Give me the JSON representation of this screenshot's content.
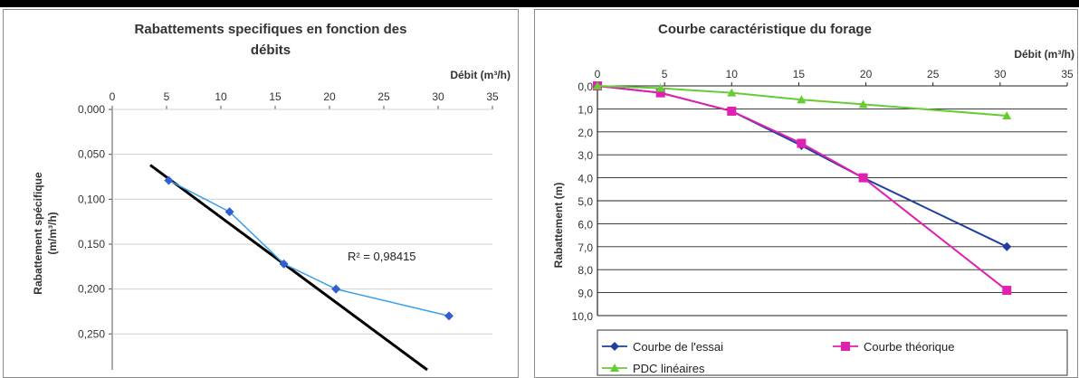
{
  "charts": [
    {
      "title_line1": "Rabattements specifiques en fonction des",
      "title_line2": "débits",
      "x_label": "Débit (m³/h)",
      "y_label_line1": "Rabattement spécifique",
      "y_label_line2": "(m/m³/h)",
      "annotation": "R² = 0,98415"
    },
    {
      "title": "Courbe caractéristique du forage",
      "x_label": "Débit (m³/h)",
      "y_label": "Rabattement (m)"
    }
  ],
  "chart_data": [
    {
      "type": "scatter",
      "title": "Rabattements specifiques en fonction des débits",
      "xlabel": "Débit (m³/h)",
      "ylabel": "Rabattement spécifique (m/m³/h)",
      "xlim": [
        0,
        35
      ],
      "ylim": [
        0,
        0.29
      ],
      "y_inverted": true,
      "x_axis_position": "top",
      "x_ticks": [
        "0",
        "5",
        "10",
        "15",
        "20",
        "25",
        "30",
        "35"
      ],
      "y_ticks": [
        "0,000",
        "0,050",
        "0,100",
        "0,150",
        "0,200",
        "0,250"
      ],
      "series": [
        {
          "color": "#2f5fd0",
          "marker": "diamond",
          "x": [
            5.2,
            10.8,
            15.8,
            20.6,
            31.0
          ],
          "y": [
            0.079,
            0.114,
            0.172,
            0.2,
            0.23
          ]
        },
        {
          "kind": "trendline",
          "color": "#000000",
          "x": [
            3.5,
            29.0
          ],
          "y": [
            0.062,
            0.29
          ]
        }
      ],
      "annotation": "R² = 0,98415"
    },
    {
      "type": "line",
      "title": "Courbe caractéristique du forage",
      "xlabel": "Débit (m³/h)",
      "ylabel": "Rabattement (m)",
      "xlim": [
        0,
        35
      ],
      "ylim": [
        0,
        10
      ],
      "y_inverted": true,
      "x_axis_position": "top",
      "x_ticks": [
        "0",
        "5",
        "10",
        "15",
        "20",
        "25",
        "30",
        "35"
      ],
      "y_ticks": [
        "0,0",
        "1,0",
        "2,0",
        "3,0",
        "4,0",
        "5,0",
        "6,0",
        "7,0",
        "8,0",
        "9,0",
        "10,0"
      ],
      "legend_position": "bottom",
      "series": [
        {
          "name": "Courbe de l'essai",
          "color": "#1f3f9f",
          "marker": "diamond",
          "x": [
            0,
            4.7,
            10.0,
            15.2,
            19.8,
            30.5
          ],
          "y": [
            0.0,
            0.3,
            1.1,
            2.6,
            4.0,
            7.0
          ]
        },
        {
          "name": "Courbe théorique",
          "color": "#e020b0",
          "marker": "square",
          "x": [
            0,
            4.7,
            10.0,
            15.2,
            19.8,
            30.5
          ],
          "y": [
            0.0,
            0.3,
            1.1,
            2.5,
            4.0,
            8.9
          ]
        },
        {
          "name": "PDC linéaires",
          "color": "#66cc33",
          "marker": "triangle",
          "x": [
            0,
            4.7,
            10.0,
            15.2,
            19.8,
            30.5
          ],
          "y": [
            0.0,
            0.1,
            0.3,
            0.6,
            0.8,
            1.3
          ]
        }
      ]
    }
  ]
}
